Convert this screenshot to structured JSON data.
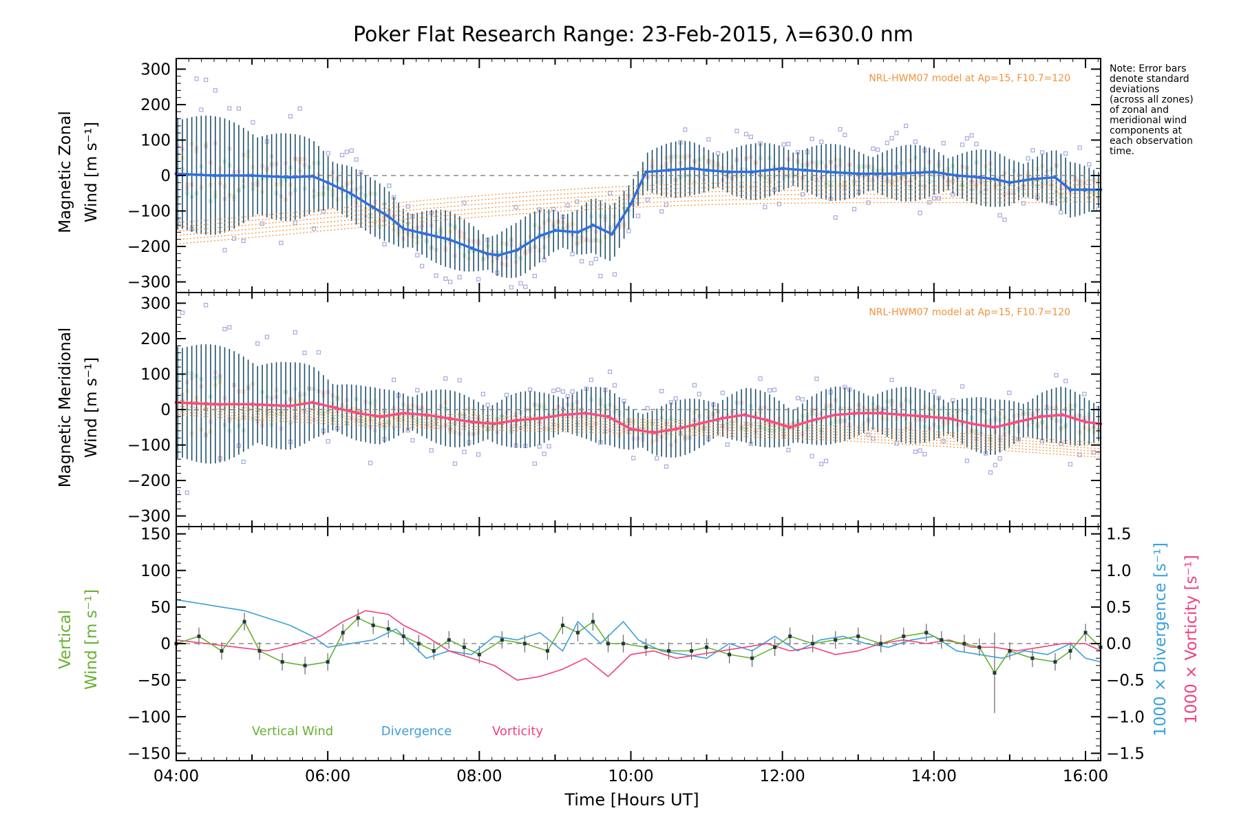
{
  "title": "Poker Flat Research Range: 23-Feb-2015, λ=630.0 nm",
  "xlabel": "Time [Hours UT]",
  "x_ticks": [
    "04:00",
    "06:00",
    "08:00",
    "10:00",
    "12:00",
    "14:00",
    "16:00"
  ],
  "note_lines": [
    "Note: Error bars",
    "denote standard",
    "deviations",
    "(across all zones)",
    "of zonal and",
    "meridional wind",
    "components at",
    "each observation",
    "time."
  ],
  "colors": {
    "zonal": "#2f6fe0",
    "meridional": "#ff4a80",
    "vertical": "#68b030",
    "divergence": "#3aa0d8",
    "vorticity": "#f0407a",
    "model": "#f0923a",
    "errorbar": "#1d4f6b",
    "zone_points": "#a9a6e0"
  },
  "panels": {
    "zonal": {
      "ylabel_line1": "Magnetic Zonal",
      "ylabel_line2": "Wind [m s⁻¹]",
      "model_label": "NRL-HWM07 model at Ap=15, F10.7=120",
      "yticks": [
        "300",
        "200",
        "100",
        "0",
        "−100",
        "−200",
        "−300"
      ]
    },
    "meridional": {
      "ylabel_line1": "Magnetic Meridional",
      "ylabel_line2": "Wind [m s⁻¹]",
      "model_label": "NRL-HWM07 model at Ap=15, F10.7=120",
      "yticks": [
        "300",
        "200",
        "100",
        "0",
        "−100",
        "−200",
        "−300"
      ]
    },
    "vertical": {
      "ylabel_line1": "Vertical",
      "ylabel_line2": "Wind [m s⁻¹]",
      "yticks": [
        "150",
        "100",
        "50",
        "0",
        "−50",
        "−100",
        "−150"
      ],
      "right_ticks": [
        "1.5",
        "1.0",
        "0.5",
        "0.0",
        "−0.5",
        "−1.0",
        "−1.5"
      ],
      "right_label_div": "1000 × Divergence [s⁻¹]",
      "right_label_vor": "1000 × Vorticity [s⁻¹]",
      "legend": [
        "Vertical Wind",
        "Divergence",
        "Vorticity"
      ]
    }
  },
  "chart_data": [
    {
      "type": "line",
      "title": "Magnetic Zonal Wind",
      "xlim": [
        4.0,
        16.2
      ],
      "ylim": [
        -330,
        330
      ],
      "series": [
        {
          "name": "",
          "x": [
            4.0,
            4.5,
            5.0,
            5.5,
            5.8,
            6.0,
            6.3,
            6.6,
            6.8,
            7.0,
            7.3,
            7.6,
            7.9,
            8.1,
            8.25,
            8.5,
            8.8,
            9.0,
            9.3,
            9.5,
            9.6,
            9.75,
            10.0,
            10.2,
            10.5,
            10.8,
            11.0,
            11.3,
            11.6,
            12.0,
            12.3,
            12.6,
            13.0,
            13.5,
            14.0,
            14.3,
            14.6,
            14.8,
            15.0,
            15.3,
            15.6,
            15.8,
            16.0,
            16.2
          ],
          "y": [
            5,
            0,
            0,
            -5,
            -2,
            -20,
            -50,
            -90,
            -115,
            -150,
            -165,
            -180,
            -205,
            -220,
            -225,
            -210,
            -170,
            -155,
            -160,
            -140,
            -150,
            -165,
            -80,
            10,
            15,
            20,
            15,
            10,
            10,
            20,
            15,
            10,
            5,
            5,
            10,
            0,
            -5,
            -10,
            -20,
            -10,
            -5,
            -40,
            -40,
            -40
          ]
        }
      ]
    },
    {
      "type": "line",
      "title": "Magnetic Meridional Wind",
      "xlim": [
        4.0,
        16.2
      ],
      "ylim": [
        -330,
        330
      ],
      "series": [
        {
          "name": "",
          "x": [
            4.0,
            4.5,
            5.0,
            5.5,
            5.8,
            6.1,
            6.4,
            6.7,
            7.0,
            7.3,
            7.6,
            7.9,
            8.2,
            8.5,
            8.8,
            9.1,
            9.4,
            9.7,
            10.0,
            10.3,
            10.6,
            10.9,
            11.2,
            11.5,
            11.8,
            12.1,
            12.4,
            12.7,
            13.0,
            13.3,
            13.6,
            13.9,
            14.2,
            14.5,
            14.8,
            15.1,
            15.4,
            15.7,
            16.0,
            16.2
          ],
          "y": [
            20,
            15,
            15,
            10,
            20,
            5,
            -10,
            -20,
            -10,
            -15,
            -25,
            -35,
            -40,
            -30,
            -25,
            -15,
            -10,
            -20,
            -55,
            -65,
            -55,
            -40,
            -25,
            -15,
            -30,
            -50,
            -30,
            -15,
            -10,
            -10,
            -15,
            -20,
            -25,
            -40,
            -50,
            -35,
            -20,
            -15,
            -35,
            -40
          ]
        }
      ]
    },
    {
      "type": "line",
      "title": "Vertical Wind / Divergence / Vorticity",
      "xlim": [
        4.0,
        16.2
      ],
      "ylim": [
        -160,
        160
      ],
      "y2lim": [
        -1.6,
        1.6
      ],
      "series": [
        {
          "name": "Vertical Wind",
          "axis": "left",
          "x": [
            4.0,
            4.3,
            4.6,
            4.9,
            5.1,
            5.4,
            5.7,
            6.0,
            6.2,
            6.4,
            6.6,
            6.8,
            7.0,
            7.2,
            7.4,
            7.6,
            7.8,
            8.0,
            8.3,
            8.6,
            8.9,
            9.1,
            9.3,
            9.5,
            9.7,
            9.9,
            10.2,
            10.5,
            10.8,
            11.0,
            11.3,
            11.6,
            11.9,
            12.1,
            12.4,
            12.7,
            13.0,
            13.3,
            13.6,
            13.9,
            14.1,
            14.4,
            14.6,
            14.8,
            15.0,
            15.3,
            15.6,
            15.8,
            16.0,
            16.2
          ],
          "y": [
            0,
            10,
            -10,
            30,
            -10,
            -25,
            -30,
            -25,
            15,
            35,
            25,
            20,
            10,
            0,
            -10,
            5,
            -5,
            -15,
            5,
            0,
            -10,
            25,
            15,
            30,
            0,
            0,
            -5,
            -10,
            -10,
            -5,
            -15,
            -20,
            -5,
            10,
            0,
            5,
            10,
            0,
            10,
            15,
            5,
            0,
            -5,
            -40,
            -10,
            -20,
            -25,
            -10,
            15,
            -5
          ]
        },
        {
          "name": "Divergence",
          "axis": "right",
          "x": [
            4.0,
            4.3,
            4.6,
            4.9,
            5.2,
            5.5,
            5.8,
            6.0,
            6.3,
            6.6,
            6.9,
            7.1,
            7.3,
            7.6,
            7.9,
            8.2,
            8.5,
            8.8,
            9.1,
            9.3,
            9.6,
            9.9,
            10.1,
            10.4,
            10.7,
            11.0,
            11.3,
            11.6,
            11.9,
            12.2,
            12.5,
            12.8,
            13.1,
            13.4,
            13.7,
            14.0,
            14.3,
            14.6,
            14.9,
            15.2,
            15.5,
            15.8,
            16.0,
            16.2
          ],
          "y": [
            0.6,
            0.55,
            0.5,
            0.45,
            0.35,
            0.25,
            0.1,
            -0.05,
            0.0,
            0.05,
            0.2,
            0.0,
            -0.2,
            -0.1,
            -0.15,
            0.1,
            0.05,
            0.15,
            -0.1,
            0.3,
            0.0,
            0.3,
            0.05,
            -0.1,
            -0.15,
            -0.2,
            0.0,
            -0.1,
            0.1,
            -0.1,
            0.05,
            0.1,
            0.0,
            -0.05,
            0.05,
            0.1,
            -0.1,
            -0.15,
            -0.2,
            -0.1,
            -0.15,
            0.0,
            -0.2,
            -0.25
          ]
        },
        {
          "name": "Vorticity",
          "axis": "right",
          "x": [
            4.0,
            4.4,
            4.8,
            5.2,
            5.6,
            5.9,
            6.2,
            6.5,
            6.8,
            7.0,
            7.3,
            7.6,
            7.9,
            8.2,
            8.5,
            8.8,
            9.1,
            9.4,
            9.7,
            10.0,
            10.3,
            10.6,
            10.9,
            11.2,
            11.5,
            11.8,
            12.1,
            12.4,
            12.7,
            13.0,
            13.3,
            13.6,
            13.9,
            14.2,
            14.5,
            14.8,
            15.1,
            15.4,
            15.7,
            16.0,
            16.2
          ],
          "y": [
            0.05,
            0.0,
            -0.05,
            -0.1,
            0.0,
            0.1,
            0.3,
            0.45,
            0.4,
            0.25,
            0.1,
            -0.1,
            -0.2,
            -0.3,
            -0.5,
            -0.45,
            -0.35,
            -0.2,
            -0.45,
            -0.15,
            -0.1,
            -0.2,
            -0.15,
            -0.1,
            -0.05,
            0.0,
            -0.1,
            -0.05,
            -0.15,
            -0.1,
            0.0,
            0.05,
            0.0,
            0.05,
            -0.05,
            -0.05,
            -0.1,
            -0.05,
            0.0,
            0.0,
            -0.1
          ]
        }
      ]
    }
  ]
}
